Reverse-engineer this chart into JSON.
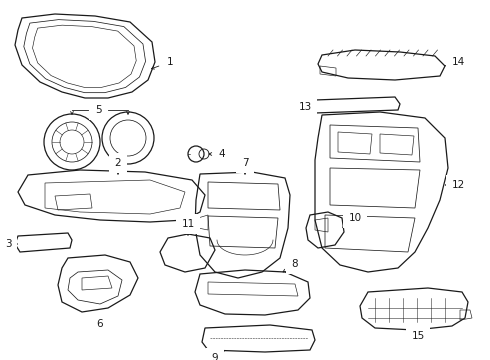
{
  "bg_color": "#ffffff",
  "line_color": "#1a1a1a",
  "figsize": [
    4.9,
    3.6
  ],
  "dpi": 100,
  "xlim": [
    0,
    490
  ],
  "ylim": [
    0,
    360
  ]
}
